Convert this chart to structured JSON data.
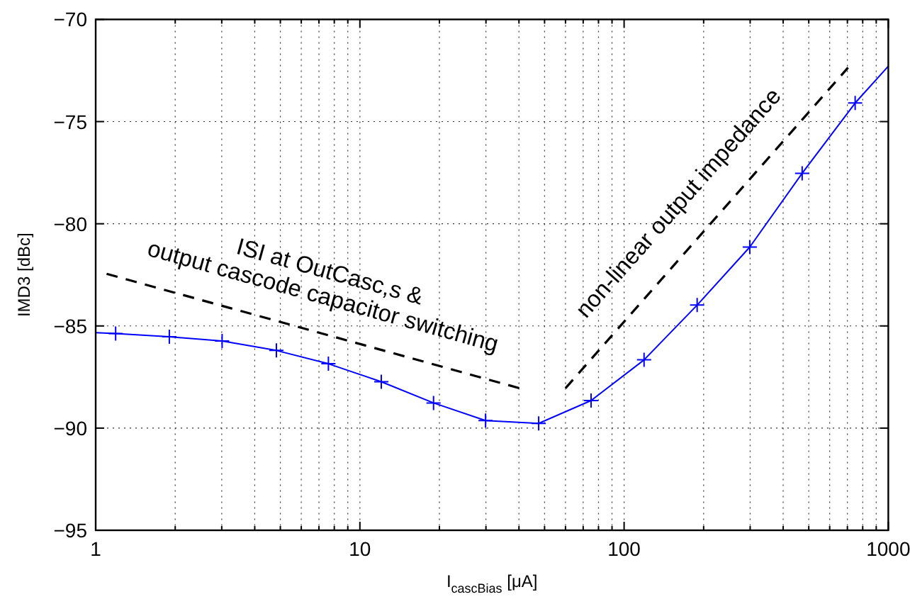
{
  "chart_data": {
    "type": "line",
    "xlabel": "I$_{cascBias}$  [μA]",
    "ylabel": "IMD3 [dBc]",
    "log": "x",
    "grid": true,
    "xlim": [
      1,
      1000
    ],
    "ylim": [
      -95,
      -70
    ],
    "xticks": [
      1,
      10,
      100,
      1000
    ],
    "yticks": [
      -95,
      -90,
      -85,
      -80,
      -75,
      -70
    ],
    "series": [
      {
        "color": "#0000ff",
        "marker": "none",
        "line_style": "solid",
        "x": [
          1,
          1.19,
          1.9,
          3.01,
          4.83,
          7.6,
          12.05,
          19,
          29.9,
          47.5,
          75,
          119,
          189,
          299,
          472,
          749,
          1000
        ],
        "values": [
          -85.33,
          -85.37,
          -85.53,
          -85.74,
          -86.2,
          -86.85,
          -87.73,
          -88.77,
          -89.63,
          -89.77,
          -88.65,
          -86.66,
          -83.98,
          -81.14,
          -77.53,
          -74.09,
          -72.29
        ]
      },
      {
        "type": "scatter",
        "color": "#0000ff",
        "marker": "cross",
        "x": [
          1.19,
          1.9,
          3.01,
          4.83,
          7.6,
          12.05,
          19,
          29.9,
          47.5,
          75,
          119,
          189,
          299,
          472,
          749
        ],
        "values": [
          -85.37,
          -85.53,
          -85.74,
          -86.2,
          -86.85,
          -87.73,
          -88.77,
          -89.63,
          -89.77,
          -88.65,
          -86.66,
          -83.98,
          -81.14,
          -77.53,
          -74.09
        ]
      },
      {
        "color": "#000000",
        "marker": "none",
        "line_style": "dashed",
        "x": [
          1.1,
          40.3
        ],
        "values": [
          -82.45,
          -88.05
        ]
      },
      {
        "color": "#000000",
        "marker": "none",
        "line_style": "dashed",
        "x": [
          60,
          704
        ],
        "values": [
          -88.05,
          -72.36
        ]
      }
    ],
    "annotations": [
      {
        "text": "ISI at OutCasc,s &\noutput cascode capacitor switching",
        "x": 6.65,
        "y": -85.25
      },
      {
        "text": "non-linear output impedance",
        "x": 205.6,
        "y": -80.2
      }
    ]
  }
}
